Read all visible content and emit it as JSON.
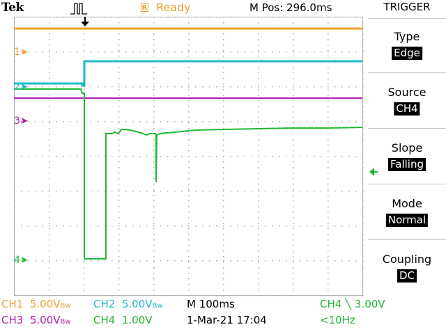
{
  "header": {
    "brand": "Tek",
    "trigger_state": "Ready",
    "trigger_state_icon": "R",
    "position": "M Pos: 296.0ms"
  },
  "menu": {
    "title": "TRIGGER",
    "items": [
      {
        "label": "Type",
        "value": "Edge"
      },
      {
        "label": "Source",
        "value": "CH4"
      },
      {
        "label": "Slope",
        "value": "Falling"
      },
      {
        "label": "Mode",
        "value": "Normal"
      },
      {
        "label": "Coupling",
        "value": "DC"
      }
    ]
  },
  "channels": {
    "markers": [
      {
        "label": "1",
        "color": "#f0a030"
      },
      {
        "label": "2",
        "color": "#20b8c8"
      },
      {
        "label": "3",
        "color": "#b020b0"
      },
      {
        "label": "4",
        "color": "#20b830"
      }
    ]
  },
  "status": {
    "ch1_label": "CH1",
    "ch1_value": "5.00V",
    "ch1_bw": "Bw",
    "ch2_label": "CH2",
    "ch2_value": "5.00V",
    "ch2_bw": "Bw",
    "ch3_label": "CH3",
    "ch3_value": "5.00V",
    "ch3_bw": "Bw",
    "ch4_label": "CH4",
    "ch4_value": "1.00V",
    "timebase": "M 100ms",
    "datetime": "1-Mar-21 17:04",
    "trigger_source": "CH4",
    "trigger_level": "3.00V",
    "trigger_freq": "<10Hz"
  },
  "colors": {
    "ch1": "#f0a030",
    "ch2": "#20b8c8",
    "ch3": "#b020b0",
    "ch4": "#20b830"
  }
}
